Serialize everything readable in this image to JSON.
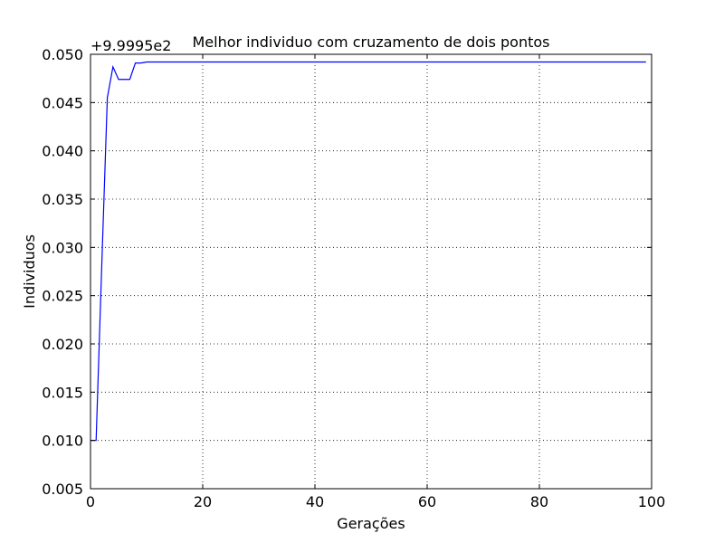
{
  "chart_data": {
    "type": "line",
    "title": "Melhor individuo com cruzamento de dois pontos",
    "xlabel": "Gerações",
    "ylabel": "Individuos",
    "offset_label": "+9.9995e2",
    "xlim": [
      0,
      100
    ],
    "ylim": [
      0.005,
      0.05
    ],
    "xticks": [
      0,
      20,
      40,
      60,
      80,
      100
    ],
    "xtick_labels": [
      "0",
      "20",
      "40",
      "60",
      "80",
      "100"
    ],
    "yticks": [
      0.005,
      0.01,
      0.015,
      0.02,
      0.025,
      0.03,
      0.035,
      0.04,
      0.045,
      0.05
    ],
    "ytick_labels": [
      "0.005",
      "0.010",
      "0.015",
      "0.020",
      "0.025",
      "0.030",
      "0.035",
      "0.040",
      "0.045",
      "0.050"
    ],
    "grid": true,
    "line_color": "#0000ff",
    "series": [
      {
        "x": [
          0,
          1,
          2,
          3,
          4,
          5,
          6,
          7,
          8,
          9,
          10,
          15,
          20,
          30,
          40,
          50,
          60,
          70,
          80,
          90,
          99
        ],
        "y": [
          0.01,
          0.01,
          0.028,
          0.0455,
          0.0487,
          0.0474,
          0.0474,
          0.0474,
          0.0491,
          0.0491,
          0.0492,
          0.0492,
          0.0492,
          0.0492,
          0.0492,
          0.0492,
          0.0492,
          0.0492,
          0.0492,
          0.0492,
          0.0492
        ]
      }
    ]
  }
}
